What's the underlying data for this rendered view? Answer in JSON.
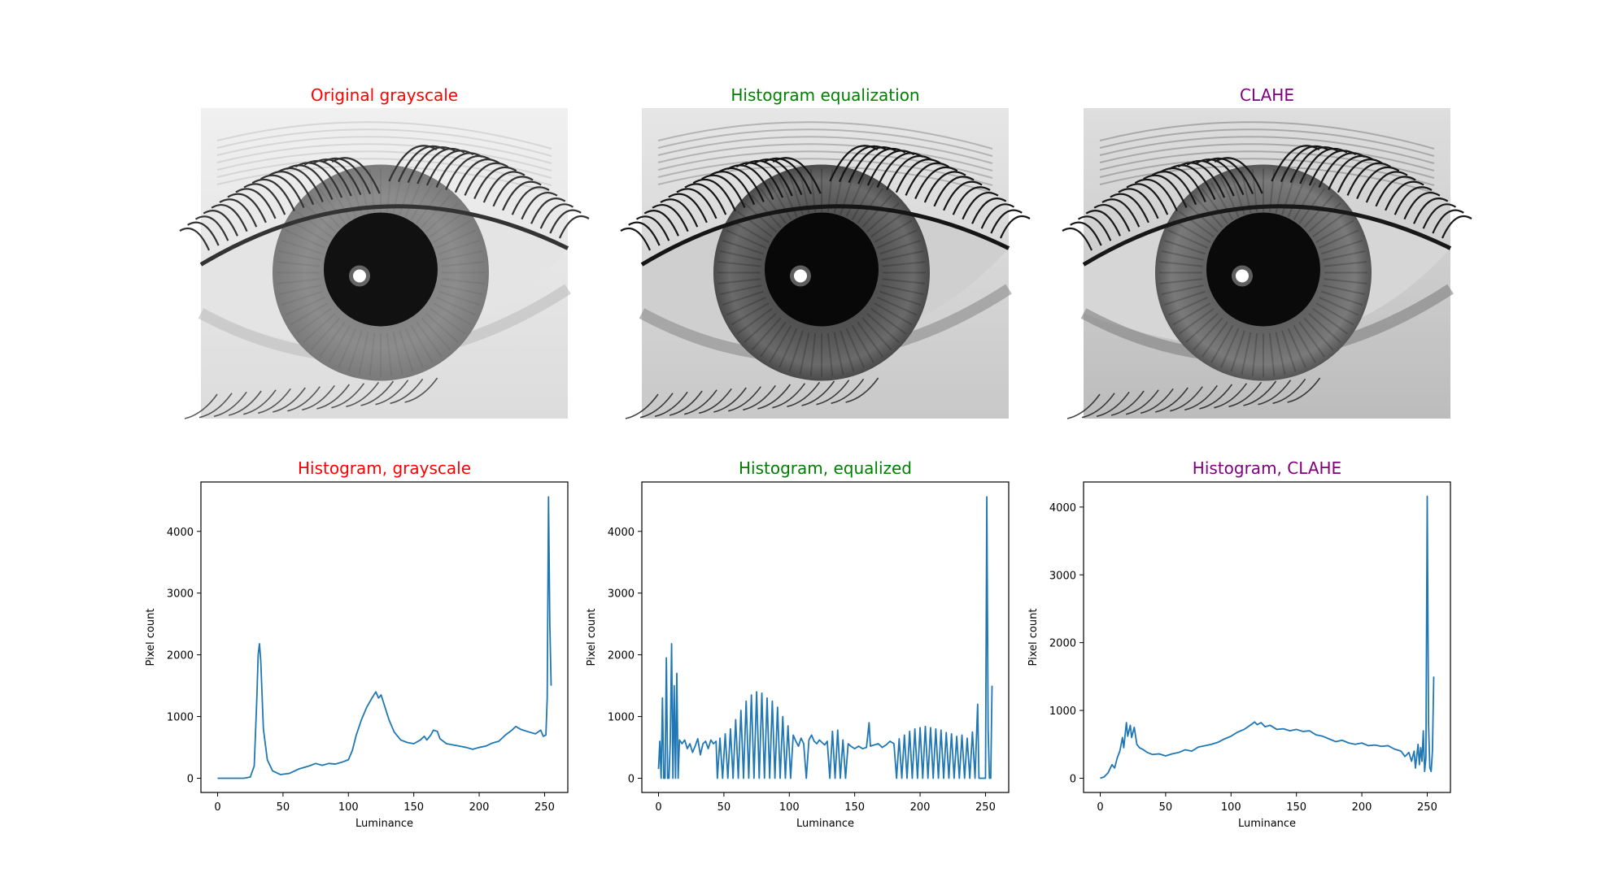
{
  "images": [
    {
      "title": "Original grayscale",
      "title_color": "#ff0000",
      "variant": "original"
    },
    {
      "title": "Histogram equalization",
      "title_color": "#008000",
      "variant": "equalized"
    },
    {
      "title": "CLAHE",
      "title_color": "#800080",
      "variant": "clahe"
    }
  ],
  "chart_data": [
    {
      "type": "line",
      "title": "Histogram, grayscale",
      "title_color": "#ff0000",
      "xlabel": "Luminance",
      "ylabel": "Pixel count",
      "xlim": [
        -12.75,
        267.75
      ],
      "ylim": [
        -230,
        4800
      ],
      "xticks": [
        0,
        50,
        100,
        150,
        200,
        250
      ],
      "yticks": [
        0,
        1000,
        2000,
        3000,
        4000
      ],
      "line_color": "#1f77b4",
      "points": [
        [
          0,
          0
        ],
        [
          20,
          0
        ],
        [
          25,
          20
        ],
        [
          28,
          200
        ],
        [
          30,
          1300
        ],
        [
          31,
          2000
        ],
        [
          32,
          2180
        ],
        [
          33,
          1900
        ],
        [
          35,
          800
        ],
        [
          38,
          300
        ],
        [
          42,
          120
        ],
        [
          48,
          60
        ],
        [
          55,
          80
        ],
        [
          62,
          150
        ],
        [
          70,
          200
        ],
        [
          75,
          240
        ],
        [
          80,
          210
        ],
        [
          85,
          240
        ],
        [
          90,
          230
        ],
        [
          95,
          260
        ],
        [
          100,
          300
        ],
        [
          103,
          450
        ],
        [
          106,
          700
        ],
        [
          110,
          950
        ],
        [
          114,
          1150
        ],
        [
          118,
          1300
        ],
        [
          121,
          1400
        ],
        [
          123,
          1300
        ],
        [
          125,
          1350
        ],
        [
          128,
          1150
        ],
        [
          131,
          950
        ],
        [
          135,
          750
        ],
        [
          140,
          620
        ],
        [
          145,
          580
        ],
        [
          150,
          560
        ],
        [
          155,
          620
        ],
        [
          158,
          680
        ],
        [
          160,
          620
        ],
        [
          163,
          700
        ],
        [
          165,
          780
        ],
        [
          168,
          760
        ],
        [
          170,
          640
        ],
        [
          175,
          560
        ],
        [
          180,
          540
        ],
        [
          185,
          520
        ],
        [
          190,
          500
        ],
        [
          195,
          470
        ],
        [
          200,
          500
        ],
        [
          205,
          520
        ],
        [
          210,
          570
        ],
        [
          215,
          600
        ],
        [
          220,
          700
        ],
        [
          225,
          780
        ],
        [
          228,
          840
        ],
        [
          232,
          790
        ],
        [
          238,
          750
        ],
        [
          243,
          720
        ],
        [
          247,
          780
        ],
        [
          249,
          680
        ],
        [
          251,
          700
        ],
        [
          252,
          1300
        ],
        [
          253,
          4560
        ],
        [
          254,
          2500
        ],
        [
          255,
          1500
        ]
      ]
    },
    {
      "type": "line",
      "title": "Histogram, equalized",
      "title_color": "#008000",
      "xlabel": "Luminance",
      "ylabel": "Pixel count",
      "xlim": [
        -12.75,
        267.75
      ],
      "ylim": [
        -230,
        4800
      ],
      "xticks": [
        0,
        50,
        100,
        150,
        200,
        250
      ],
      "yticks": [
        0,
        1000,
        2000,
        3000,
        4000
      ],
      "line_color": "#1f77b4",
      "points": [
        [
          0,
          150
        ],
        [
          1,
          600
        ],
        [
          2,
          0
        ],
        [
          3,
          1300
        ],
        [
          4,
          0
        ],
        [
          5,
          0
        ],
        [
          6,
          1950
        ],
        [
          7,
          0
        ],
        [
          8,
          0
        ],
        [
          9,
          600
        ],
        [
          10,
          2180
        ],
        [
          11,
          0
        ],
        [
          12,
          1500
        ],
        [
          13,
          0
        ],
        [
          14,
          1700
        ],
        [
          15,
          0
        ],
        [
          16,
          620
        ],
        [
          18,
          560
        ],
        [
          20,
          620
        ],
        [
          22,
          480
        ],
        [
          24,
          560
        ],
        [
          26,
          420
        ],
        [
          28,
          520
        ],
        [
          30,
          640
        ],
        [
          32,
          380
        ],
        [
          34,
          560
        ],
        [
          36,
          600
        ],
        [
          38,
          480
        ],
        [
          40,
          620
        ],
        [
          42,
          560
        ],
        [
          44,
          600
        ],
        [
          45,
          0
        ],
        [
          47,
          650
        ],
        [
          49,
          0
        ],
        [
          51,
          720
        ],
        [
          53,
          0
        ],
        [
          55,
          800
        ],
        [
          57,
          0
        ],
        [
          59,
          950
        ],
        [
          61,
          0
        ],
        [
          63,
          1100
        ],
        [
          65,
          0
        ],
        [
          67,
          1250
        ],
        [
          69,
          0
        ],
        [
          71,
          1350
        ],
        [
          73,
          0
        ],
        [
          75,
          1400
        ],
        [
          77,
          0
        ],
        [
          79,
          1380
        ],
        [
          81,
          0
        ],
        [
          83,
          1300
        ],
        [
          85,
          0
        ],
        [
          87,
          1250
        ],
        [
          89,
          0
        ],
        [
          91,
          1150
        ],
        [
          93,
          0
        ],
        [
          95,
          1000
        ],
        [
          97,
          0
        ],
        [
          99,
          850
        ],
        [
          101,
          0
        ],
        [
          103,
          700
        ],
        [
          105,
          600
        ],
        [
          107,
          520
        ],
        [
          109,
          650
        ],
        [
          111,
          560
        ],
        [
          113,
          0
        ],
        [
          115,
          620
        ],
        [
          117,
          700
        ],
        [
          119,
          600
        ],
        [
          121,
          560
        ],
        [
          123,
          620
        ],
        [
          125,
          580
        ],
        [
          127,
          540
        ],
        [
          129,
          600
        ],
        [
          131,
          0
        ],
        [
          133,
          760
        ],
        [
          135,
          0
        ],
        [
          137,
          780
        ],
        [
          139,
          0
        ],
        [
          141,
          620
        ],
        [
          143,
          0
        ],
        [
          145,
          560
        ],
        [
          147,
          520
        ],
        [
          150,
          480
        ],
        [
          153,
          520
        ],
        [
          156,
          480
        ],
        [
          159,
          500
        ],
        [
          161,
          900
        ],
        [
          162,
          520
        ],
        [
          165,
          540
        ],
        [
          168,
          560
        ],
        [
          171,
          500
        ],
        [
          174,
          540
        ],
        [
          177,
          600
        ],
        [
          180,
          560
        ],
        [
          182,
          0
        ],
        [
          184,
          640
        ],
        [
          186,
          0
        ],
        [
          188,
          700
        ],
        [
          190,
          0
        ],
        [
          192,
          760
        ],
        [
          194,
          0
        ],
        [
          196,
          800
        ],
        [
          198,
          0
        ],
        [
          200,
          820
        ],
        [
          202,
          0
        ],
        [
          204,
          840
        ],
        [
          206,
          0
        ],
        [
          208,
          820
        ],
        [
          210,
          0
        ],
        [
          212,
          800
        ],
        [
          214,
          0
        ],
        [
          216,
          780
        ],
        [
          218,
          0
        ],
        [
          220,
          740
        ],
        [
          222,
          0
        ],
        [
          224,
          720
        ],
        [
          226,
          0
        ],
        [
          228,
          680
        ],
        [
          230,
          0
        ],
        [
          232,
          700
        ],
        [
          234,
          0
        ],
        [
          236,
          650
        ],
        [
          238,
          0
        ],
        [
          240,
          750
        ],
        [
          242,
          0
        ],
        [
          244,
          1200
        ],
        [
          245,
          0
        ],
        [
          248,
          0
        ],
        [
          250,
          0
        ],
        [
          251,
          4560
        ],
        [
          252,
          800
        ],
        [
          253,
          0
        ],
        [
          254,
          0
        ],
        [
          255,
          1500
        ]
      ]
    },
    {
      "type": "line",
      "title": "Histogram, CLAHE",
      "title_color": "#800080",
      "xlabel": "Luminance",
      "ylabel": "Pixel count",
      "xlim": [
        -12.75,
        267.75
      ],
      "ylim": [
        -210,
        4370
      ],
      "xticks": [
        0,
        50,
        100,
        150,
        200,
        250
      ],
      "yticks": [
        0,
        1000,
        2000,
        3000,
        4000
      ],
      "line_color": "#1f77b4",
      "points": [
        [
          0,
          0
        ],
        [
          3,
          20
        ],
        [
          6,
          80
        ],
        [
          9,
          200
        ],
        [
          11,
          150
        ],
        [
          13,
          300
        ],
        [
          15,
          400
        ],
        [
          17,
          600
        ],
        [
          18,
          450
        ],
        [
          20,
          820
        ],
        [
          21,
          620
        ],
        [
          23,
          780
        ],
        [
          24,
          600
        ],
        [
          26,
          750
        ],
        [
          28,
          500
        ],
        [
          30,
          450
        ],
        [
          33,
          420
        ],
        [
          36,
          380
        ],
        [
          40,
          350
        ],
        [
          45,
          360
        ],
        [
          50,
          330
        ],
        [
          55,
          360
        ],
        [
          60,
          380
        ],
        [
          65,
          420
        ],
        [
          70,
          400
        ],
        [
          75,
          460
        ],
        [
          80,
          480
        ],
        [
          85,
          500
        ],
        [
          90,
          530
        ],
        [
          95,
          580
        ],
        [
          100,
          620
        ],
        [
          105,
          680
        ],
        [
          110,
          720
        ],
        [
          113,
          760
        ],
        [
          116,
          800
        ],
        [
          118,
          830
        ],
        [
          120,
          790
        ],
        [
          123,
          820
        ],
        [
          126,
          760
        ],
        [
          130,
          780
        ],
        [
          135,
          720
        ],
        [
          140,
          730
        ],
        [
          145,
          700
        ],
        [
          150,
          720
        ],
        [
          155,
          690
        ],
        [
          160,
          700
        ],
        [
          165,
          640
        ],
        [
          170,
          620
        ],
        [
          175,
          580
        ],
        [
          180,
          540
        ],
        [
          185,
          560
        ],
        [
          190,
          520
        ],
        [
          195,
          500
        ],
        [
          200,
          520
        ],
        [
          205,
          480
        ],
        [
          210,
          490
        ],
        [
          215,
          470
        ],
        [
          220,
          480
        ],
        [
          225,
          430
        ],
        [
          230,
          400
        ],
        [
          233,
          320
        ],
        [
          236,
          380
        ],
        [
          238,
          250
        ],
        [
          240,
          400
        ],
        [
          241,
          150
        ],
        [
          243,
          500
        ],
        [
          244,
          200
        ],
        [
          245,
          450
        ],
        [
          246,
          250
        ],
        [
          247,
          700
        ],
        [
          248,
          100
        ],
        [
          249,
          300
        ],
        [
          250,
          4160
        ],
        [
          251,
          800
        ],
        [
          252,
          150
        ],
        [
          253,
          100
        ],
        [
          254,
          400
        ],
        [
          255,
          1500
        ]
      ]
    }
  ]
}
